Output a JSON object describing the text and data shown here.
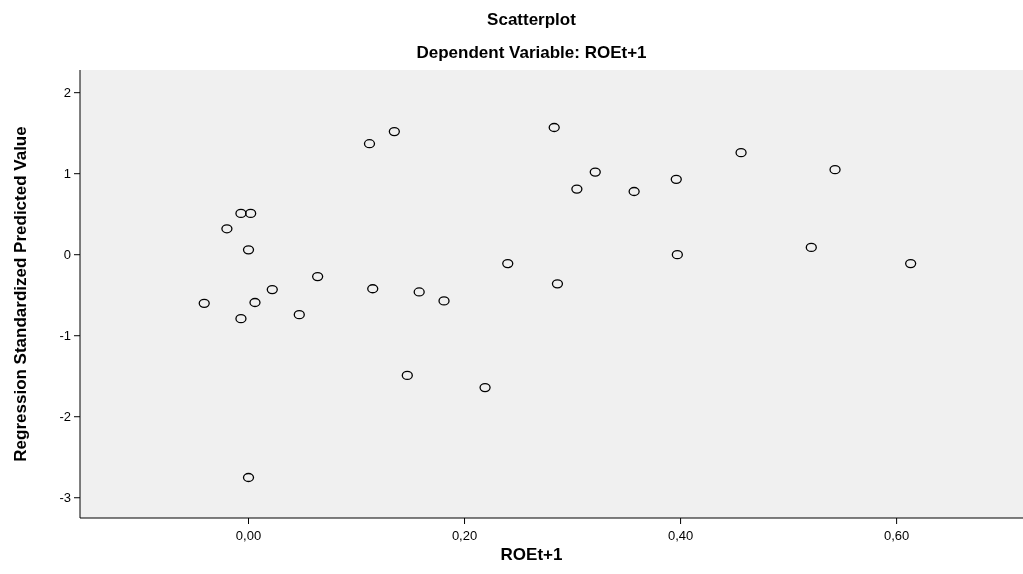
{
  "chart_data": {
    "type": "scatter",
    "title": "Scatterplot",
    "subtitle": "Dependent Variable: ROEt+1",
    "xlabel": "ROEt+1",
    "ylabel": "Regression Standardized Predicted Value",
    "marker": "circle",
    "grid": false,
    "xlim": [
      -0.156,
      0.717
    ],
    "ylim": [
      -3.25,
      2.28
    ],
    "xticks": [
      {
        "value": 0,
        "label": "0,00"
      },
      {
        "value": 0.2,
        "label": "0,20"
      },
      {
        "value": 0.4,
        "label": "0,40"
      },
      {
        "value": 0.6,
        "label": "0,60"
      }
    ],
    "yticks": [
      -3,
      -2,
      -1,
      0,
      1,
      2
    ],
    "series": [
      {
        "color": "#000000",
        "x": [
          -0.041,
          -0.007,
          0.002,
          -0.02,
          0.0,
          -0.007,
          0.006,
          0.022,
          0.047,
          0.064,
          0.0,
          0.112,
          0.135,
          0.115,
          0.147,
          0.158,
          0.181,
          0.219,
          0.24,
          0.283,
          0.286,
          0.304,
          0.321,
          0.357,
          0.396,
          0.397,
          0.456,
          0.521,
          0.543,
          0.613
        ],
        "values": [
          -0.6,
          0.51,
          0.51,
          0.32,
          0.06,
          -0.79,
          -0.59,
          -0.43,
          -0.74,
          -0.27,
          -2.75,
          1.37,
          1.52,
          -0.42,
          -1.49,
          -0.46,
          -0.57,
          -1.64,
          -0.11,
          1.57,
          -0.36,
          0.81,
          1.02,
          0.78,
          0.93,
          0.0,
          1.26,
          0.09,
          1.05,
          -0.11
        ]
      }
    ]
  }
}
